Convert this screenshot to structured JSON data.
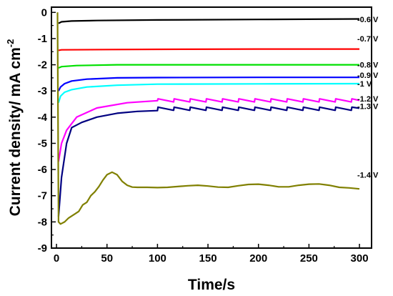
{
  "chart_data": {
    "type": "line",
    "xlabel": "Time/s",
    "ylabel": "Current density/ mA cm",
    "ylabel_superscript": "-2",
    "xlim": [
      -5,
      312
    ],
    "ylim": [
      -9,
      0.2
    ],
    "xticks": [
      0,
      50,
      100,
      150,
      200,
      250,
      300
    ],
    "yticks": [
      0,
      -1,
      -2,
      -3,
      -4,
      -5,
      -6,
      -7,
      -8,
      -9
    ],
    "grid": false,
    "legend": "none",
    "series": [
      {
        "name": "-0.6 V",
        "color": "#000000",
        "x": [
          2,
          5,
          15,
          40,
          100,
          200,
          300
        ],
        "y": [
          -0.42,
          -0.36,
          -0.33,
          -0.31,
          -0.29,
          -0.27,
          -0.25
        ]
      },
      {
        "name": "-0.7 V",
        "color": "#ff0000",
        "x": [
          2,
          5,
          50,
          100,
          200,
          300
        ],
        "y": [
          -1.45,
          -1.43,
          -1.42,
          -1.41,
          -1.4,
          -1.4
        ]
      },
      {
        "name": "-0.8 V",
        "color": "#00e000",
        "x": [
          2,
          5,
          20,
          60,
          100,
          200,
          300
        ],
        "y": [
          -2.12,
          -2.07,
          -2.03,
          -2.0,
          -2.0,
          -2.0,
          -2.0
        ]
      },
      {
        "name": "-0.9 V",
        "color": "#0000ff",
        "x": [
          2,
          4,
          8,
          15,
          30,
          60,
          100,
          200,
          300
        ],
        "y": [
          -3.0,
          -2.85,
          -2.72,
          -2.62,
          -2.55,
          -2.5,
          -2.49,
          -2.48,
          -2.48
        ]
      },
      {
        "name": "-1 V",
        "color": "#00ffff",
        "x": [
          2,
          4,
          8,
          15,
          30,
          60,
          100,
          200,
          300
        ],
        "y": [
          -3.45,
          -3.2,
          -3.05,
          -2.95,
          -2.85,
          -2.78,
          -2.74,
          -2.73,
          -2.72
        ]
      },
      {
        "name": "-1.2 V",
        "color": "#ff00ff",
        "x": [
          2,
          5,
          10,
          20,
          40,
          70,
          100,
          100.5,
          116,
          116.5,
          132,
          132.5,
          148,
          148.5,
          164,
          164.5,
          180,
          180.5,
          196,
          196.5,
          212,
          212.5,
          228,
          228.5,
          244,
          244.5,
          260,
          260.5,
          276,
          276.5,
          292,
          292.5,
          300
        ],
        "y": [
          -5.7,
          -5.0,
          -4.5,
          -4.0,
          -3.65,
          -3.45,
          -3.37,
          -3.3,
          -3.42,
          -3.3,
          -3.42,
          -3.3,
          -3.42,
          -3.3,
          -3.42,
          -3.3,
          -3.42,
          -3.3,
          -3.42,
          -3.3,
          -3.42,
          -3.3,
          -3.42,
          -3.3,
          -3.42,
          -3.3,
          -3.42,
          -3.3,
          -3.42,
          -3.3,
          -3.42,
          -3.3,
          -3.36
        ]
      },
      {
        "name": "-1.3 V",
        "color": "#000080",
        "x": [
          2,
          5,
          10,
          15,
          25,
          40,
          60,
          80,
          100,
          100.5,
          116,
          116.5,
          132,
          132.5,
          148,
          148.5,
          164,
          164.5,
          180,
          180.5,
          196,
          196.5,
          212,
          212.5,
          228,
          228.5,
          244,
          244.5,
          260,
          260.5,
          276,
          276.5,
          292,
          292.5,
          300
        ],
        "y": [
          -7.8,
          -6.3,
          -5.0,
          -4.4,
          -4.2,
          -4.0,
          -3.85,
          -3.78,
          -3.75,
          -3.62,
          -3.74,
          -3.62,
          -3.74,
          -3.62,
          -3.74,
          -3.62,
          -3.74,
          -3.62,
          -3.74,
          -3.62,
          -3.74,
          -3.62,
          -3.74,
          -3.62,
          -3.74,
          -3.62,
          -3.74,
          -3.62,
          -3.74,
          -3.62,
          -3.74,
          -3.62,
          -3.74,
          -3.62,
          -3.66
        ]
      },
      {
        "name": "-1.4 V",
        "color": "#808000",
        "x": [
          1,
          2,
          4,
          8,
          12,
          18,
          22,
          26,
          30,
          34,
          38,
          42,
          46,
          50,
          55,
          60,
          65,
          70,
          75,
          80,
          85,
          90,
          100,
          110,
          120,
          130,
          140,
          150,
          160,
          170,
          180,
          190,
          200,
          210,
          220,
          230,
          240,
          250,
          260,
          270,
          280,
          290,
          300
        ],
        "y": [
          0,
          -8.0,
          -8.08,
          -8.0,
          -7.85,
          -7.7,
          -7.6,
          -7.35,
          -7.25,
          -7.0,
          -6.85,
          -6.65,
          -6.4,
          -6.2,
          -6.1,
          -6.2,
          -6.45,
          -6.6,
          -6.67,
          -6.68,
          -6.68,
          -6.68,
          -6.69,
          -6.68,
          -6.65,
          -6.62,
          -6.6,
          -6.63,
          -6.67,
          -6.68,
          -6.62,
          -6.57,
          -6.56,
          -6.6,
          -6.66,
          -6.66,
          -6.6,
          -6.56,
          -6.55,
          -6.6,
          -6.68,
          -6.7,
          -6.74
        ]
      }
    ],
    "labels": [
      {
        "text": "-0.6 V",
        "y": -0.27
      },
      {
        "text": "-0.7 V",
        "y": -1.0
      },
      {
        "text": "-0.8 V",
        "y": -2.0
      },
      {
        "text": "-0.9 V",
        "y": -2.4
      },
      {
        "text": "-1 V",
        "y": -2.72
      },
      {
        "text": "-1.2 V",
        "y": -3.3
      },
      {
        "text": "-1.3 V",
        "y": -3.58
      },
      {
        "text": "-1.4 V",
        "y": -6.2
      }
    ]
  }
}
